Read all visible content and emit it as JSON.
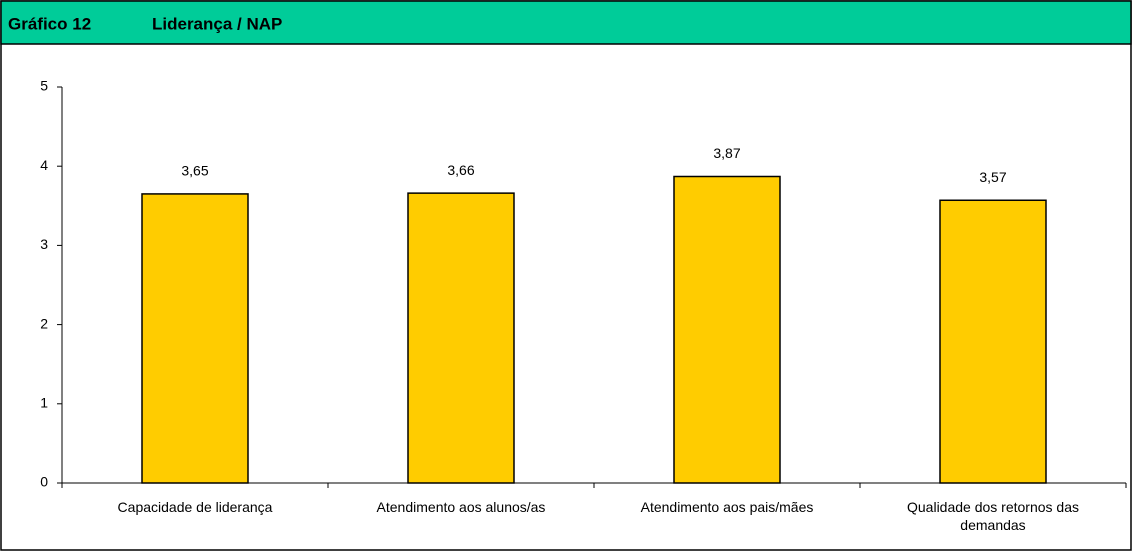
{
  "chart_data": {
    "type": "bar",
    "label": "Gráfico 12",
    "title": "Liderança / NAP",
    "categories": [
      "Capacidade de liderança",
      "Atendimento aos alunos/as",
      "Atendimento aos pais/mães",
      "Qualidade dos retornos das demandas"
    ],
    "values": [
      3.65,
      3.66,
      3.87,
      3.57
    ],
    "value_labels": [
      "3,65",
      "3,66",
      "3,87",
      "3,57"
    ],
    "color": "#ffcc00",
    "ylim": [
      0,
      5
    ],
    "yticks": [
      0,
      1,
      2,
      3,
      4,
      5
    ],
    "grid": false
  }
}
